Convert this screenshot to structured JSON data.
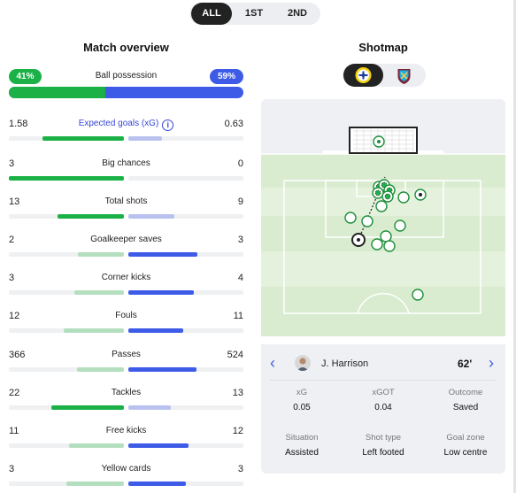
{
  "period_tabs": [
    "ALL",
    "1ST",
    "2ND"
  ],
  "active_period": "ALL",
  "match_overview": {
    "title": "Match overview",
    "possession": {
      "label": "Ball possession",
      "home": "41%",
      "away": "59%",
      "home_fraction": 0.41
    },
    "stats": [
      {
        "label": "Expected goals (xG)",
        "home": "1.58",
        "away": "0.63",
        "home_pct": 0.71,
        "away_pct": 0.29,
        "leader": "home",
        "info": true
      },
      {
        "label": "Big chances",
        "home": "3",
        "away": "0",
        "home_pct": 1.0,
        "away_pct": 0.0,
        "leader": "home"
      },
      {
        "label": "Total shots",
        "home": "13",
        "away": "9",
        "home_pct": 0.58,
        "away_pct": 0.4,
        "leader": "home"
      },
      {
        "label": "Goalkeeper saves",
        "home": "2",
        "away": "3",
        "home_pct": 0.4,
        "away_pct": 0.6,
        "leader": "away"
      },
      {
        "label": "Corner kicks",
        "home": "3",
        "away": "4",
        "home_pct": 0.43,
        "away_pct": 0.57,
        "leader": "away"
      },
      {
        "label": "Fouls",
        "home": "12",
        "away": "11",
        "home_pct": 0.52,
        "away_pct": 0.48,
        "leader": "away"
      },
      {
        "label": "Passes",
        "home": "366",
        "away": "524",
        "home_pct": 0.41,
        "away_pct": 0.59,
        "leader": "away"
      },
      {
        "label": "Tackles",
        "home": "22",
        "away": "13",
        "home_pct": 0.63,
        "away_pct": 0.37,
        "leader": "home"
      },
      {
        "label": "Free kicks",
        "home": "11",
        "away": "12",
        "home_pct": 0.48,
        "away_pct": 0.52,
        "leader": "away"
      },
      {
        "label": "Yellow cards",
        "home": "3",
        "away": "3",
        "home_pct": 0.5,
        "away_pct": 0.5,
        "leader": "away"
      }
    ]
  },
  "shotmap": {
    "title": "Shotmap",
    "teams": [
      {
        "name": "Leeds United",
        "active": true,
        "icon": "leeds-crest-icon"
      },
      {
        "name": "West Ham United",
        "active": false,
        "icon": "west-ham-crest-icon"
      }
    ],
    "selected_shot": {
      "player": "J. Harrison",
      "minute": "62'",
      "xg_label": "xG",
      "xg": "0.05",
      "xgot_label": "xGOT",
      "xgot": "0.04",
      "outcome_label": "Outcome",
      "outcome": "Saved",
      "situation_label": "Situation",
      "situation": "Assisted",
      "shot_type_label": "Shot type",
      "shot_type": "Left footed",
      "goal_zone_label": "Goal zone",
      "goal_zone": "Low centre"
    }
  },
  "colors": {
    "home": "#1bb146",
    "away": "#3e5be8",
    "pitch": "#dfeed6"
  }
}
